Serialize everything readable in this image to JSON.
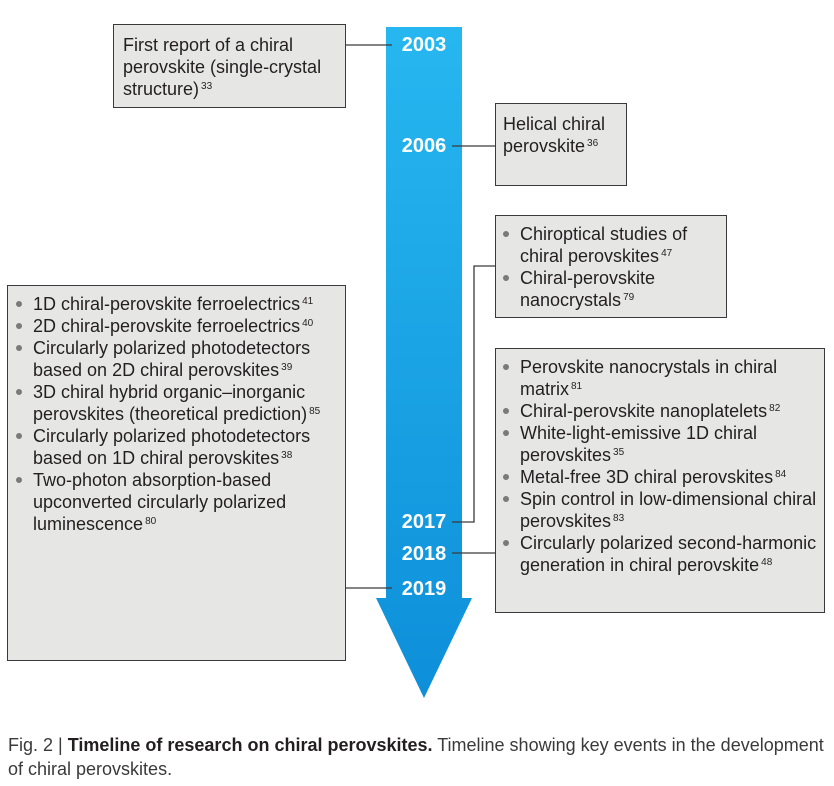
{
  "timeline": {
    "arrow_color": "#1aa3e8",
    "years": [
      "2003",
      "2006",
      "2017",
      "2018",
      "2019"
    ]
  },
  "boxes": {
    "y2003": {
      "text": "First report of a chiral perovskite (single-crystal structure)",
      "ref": "33"
    },
    "y2006": {
      "text": "Helical chiral perovskite",
      "ref": "36"
    },
    "y2017": {
      "items": [
        {
          "text": "Chiroptical studies of chiral perovskites",
          "ref": "47"
        },
        {
          "text": "Chiral-perovskite nanocrystals",
          "ref": "79"
        }
      ]
    },
    "y2018": {
      "items": [
        {
          "text": "Perovskite nanocrystals in chiral matrix",
          "ref": "81"
        },
        {
          "text": "Chiral-perovskite nanoplatelets",
          "ref": "82"
        },
        {
          "text": "White-light-emissive 1D chiral perovskites",
          "ref": "35"
        },
        {
          "text": "Metal-free 3D chiral perovskites",
          "ref": "84"
        },
        {
          "text": "Spin control in low-dimensional chiral perovskites",
          "ref": "83"
        },
        {
          "text": "Circularly polarized second-harmonic generation in chiral perovskite",
          "ref": "48"
        }
      ]
    },
    "y2019": {
      "items": [
        {
          "text": "1D chiral-perovskite ferroelectrics",
          "ref": "41"
        },
        {
          "text": "2D chiral-perovskite ferroelectrics",
          "ref": "40"
        },
        {
          "text": "Circularly polarized photodetectors based on 2D chiral perovskites",
          "ref": "39"
        },
        {
          "text": "3D chiral hybrid organic–inorganic perovskites (theoretical prediction)",
          "ref": "85"
        },
        {
          "text": "Circularly polarized photodetectors based on 1D chiral perovskites",
          "ref": "38"
        },
        {
          "text": "Two-photon absorption-based upconverted circularly polarized luminescence",
          "ref": "80"
        }
      ]
    }
  },
  "caption": {
    "fig": "Fig. 2 | ",
    "title": "Timeline of research on chiral perovskites.",
    "text": " Timeline showing key events in the development of chiral perovskites."
  }
}
